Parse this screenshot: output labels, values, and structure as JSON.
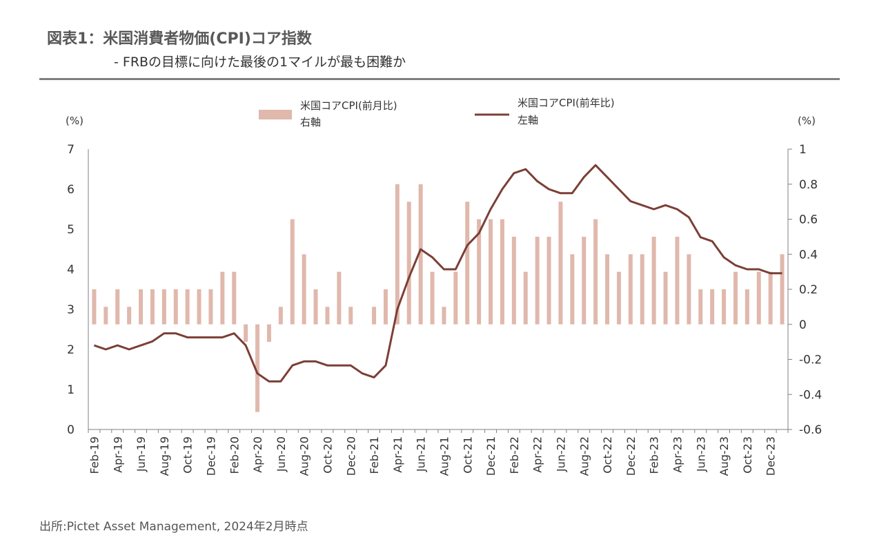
{
  "header": {
    "title": "図表1：米国消費者物価(CPI)コア指数",
    "subtitle": "- FRBの目標に向けた最後の1マイルが最も困難か"
  },
  "source": "出所:Pictet Asset Management, 2024年2月時点",
  "colors": {
    "bar": "#e0b8ac",
    "line": "#7b3f36",
    "axis": "#7f7f7f"
  },
  "chart_data": {
    "type": "bar+line",
    "left_unit": "(%)",
    "right_unit": "(%)",
    "left_ylim": [
      0,
      7
    ],
    "right_ylim": [
      -0.6,
      1.0
    ],
    "left_ticks": [
      "0",
      "1",
      "2",
      "3",
      "4",
      "5",
      "6",
      "7"
    ],
    "right_ticks": [
      "-0.6",
      "-0.4",
      "-0.2",
      "0",
      "0.2",
      "0.4",
      "0.6",
      "0.8",
      "1"
    ],
    "tick_labels": [
      "Feb-19",
      "Apr-19",
      "Jun-19",
      "Aug-19",
      "Oct-19",
      "Dec-19",
      "Feb-20",
      "Apr-20",
      "Jun-20",
      "Aug-20",
      "Oct-20",
      "Dec-20",
      "Feb-21",
      "Apr-21",
      "Jun-21",
      "Aug-21",
      "Oct-21",
      "Dec-21",
      "Feb-22",
      "Apr-22",
      "Jun-22",
      "Aug-22",
      "Oct-22",
      "Dec-22",
      "Feb-23",
      "Apr-23",
      "Jun-23",
      "Aug-23",
      "Oct-23",
      "Dec-23"
    ],
    "months": [
      "Feb-19",
      "Mar-19",
      "Apr-19",
      "May-19",
      "Jun-19",
      "Jul-19",
      "Aug-19",
      "Sep-19",
      "Oct-19",
      "Nov-19",
      "Dec-19",
      "Jan-20",
      "Feb-20",
      "Mar-20",
      "Apr-20",
      "May-20",
      "Jun-20",
      "Jul-20",
      "Aug-20",
      "Sep-20",
      "Oct-20",
      "Nov-20",
      "Dec-20",
      "Jan-21",
      "Feb-21",
      "Mar-21",
      "Apr-21",
      "May-21",
      "Jun-21",
      "Jul-21",
      "Aug-21",
      "Sep-21",
      "Oct-21",
      "Nov-21",
      "Dec-21",
      "Jan-22",
      "Feb-22",
      "Mar-22",
      "Apr-22",
      "May-22",
      "Jun-22",
      "Jul-22",
      "Aug-22",
      "Sep-22",
      "Oct-22",
      "Nov-22",
      "Dec-22",
      "Jan-23",
      "Feb-23",
      "Mar-23",
      "Apr-23",
      "May-23",
      "Jun-23",
      "Jul-23",
      "Aug-23",
      "Sep-23",
      "Oct-23",
      "Nov-23",
      "Dec-23",
      "Jan-24"
    ],
    "series": [
      {
        "name": "米国コアCPI(前月比)",
        "axis_label": "右軸",
        "type": "bar",
        "values": [
          0.2,
          0.1,
          0.2,
          0.1,
          0.2,
          0.2,
          0.2,
          0.2,
          0.2,
          0.2,
          0.2,
          0.3,
          0.3,
          -0.1,
          -0.5,
          -0.1,
          0.1,
          0.6,
          0.4,
          0.2,
          0.1,
          0.3,
          0.1,
          0.0,
          0.1,
          0.2,
          0.8,
          0.7,
          0.8,
          0.3,
          0.1,
          0.3,
          0.7,
          0.6,
          0.6,
          0.6,
          0.5,
          0.3,
          0.5,
          0.5,
          0.7,
          0.4,
          0.5,
          0.6,
          0.4,
          0.3,
          0.4,
          0.4,
          0.5,
          0.3,
          0.5,
          0.4,
          0.2,
          0.2,
          0.2,
          0.3,
          0.2,
          0.3,
          0.3,
          0.4
        ]
      },
      {
        "name": "米国コアCPI(前年比)",
        "axis_label": "左軸",
        "type": "line",
        "values": [
          2.1,
          2.0,
          2.1,
          2.0,
          2.1,
          2.2,
          2.4,
          2.4,
          2.3,
          2.3,
          2.3,
          2.3,
          2.4,
          2.1,
          1.4,
          1.2,
          1.2,
          1.6,
          1.7,
          1.7,
          1.6,
          1.6,
          1.6,
          1.4,
          1.3,
          1.6,
          3.0,
          3.8,
          4.5,
          4.3,
          4.0,
          4.0,
          4.6,
          4.9,
          5.5,
          6.0,
          6.4,
          6.5,
          6.2,
          6.0,
          5.9,
          5.9,
          6.3,
          6.6,
          6.3,
          6.0,
          5.7,
          5.6,
          5.5,
          5.6,
          5.5,
          5.3,
          4.8,
          4.7,
          4.3,
          4.1,
          4.0,
          4.0,
          3.9,
          3.9
        ]
      }
    ]
  }
}
